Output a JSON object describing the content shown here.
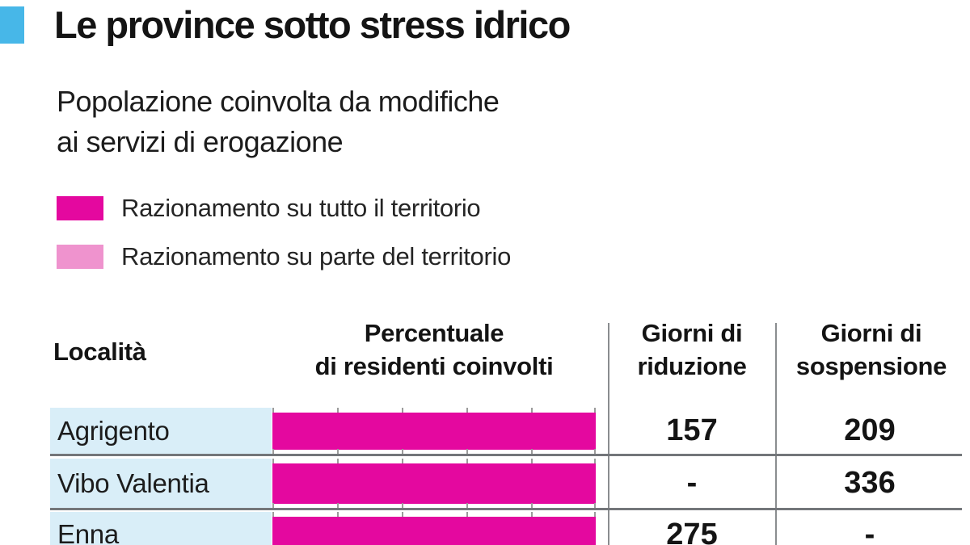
{
  "title": "Le province sotto stress idrico",
  "subtitle": {
    "line1": "Popolazione coinvolta da modifiche",
    "line2": "ai servizi di erogazione"
  },
  "legend": {
    "items": [
      {
        "key": "full-territory",
        "label": "Razionamento su tutto il territorio",
        "color": "#e4089f"
      },
      {
        "key": "part-territory",
        "label": "Razionamento su parte del territorio",
        "color": "#ef93ce"
      }
    ]
  },
  "table": {
    "headers": {
      "location": "Località",
      "percent_line1": "Percentuale",
      "percent_line2": "di residenti coinvolti",
      "reduction_line1": "Giorni di",
      "reduction_line2": "riduzione",
      "suspension_line1": "Giorni di",
      "suspension_line2": "sospensione"
    },
    "rows": [
      {
        "location": "Agrigento",
        "percent_involved": 100,
        "rationing": "full-territory",
        "reduction_days": "157",
        "suspension_days": "209"
      },
      {
        "location": "Vibo Valentia",
        "percent_involved": 100,
        "rationing": "full-territory",
        "reduction_days": "-",
        "suspension_days": "336"
      },
      {
        "location": "Enna",
        "percent_involved": 100,
        "rationing": "full-territory",
        "reduction_days": "275",
        "suspension_days": "-"
      }
    ]
  },
  "colors": {
    "cyan": "#47b7e8",
    "magenta": "#e4089f",
    "pink": "#ef93ce",
    "row_bg": "#d9eef8",
    "separator": "#73767a",
    "divider": "#8a8d8f",
    "tick": "#9b9b9b",
    "text": "#141414"
  },
  "chart_data": {
    "type": "bar",
    "orientation": "horizontal",
    "title": "Le province sotto stress idrico",
    "subtitle": "Popolazione coinvolta da modifiche ai servizi di erogazione",
    "categories": [
      "Agrigento",
      "Vibo Valentia",
      "Enna"
    ],
    "series": [
      {
        "name": "Razionamento su tutto il territorio",
        "values": [
          100,
          100,
          100
        ],
        "color": "#e4089f"
      }
    ],
    "value_axis_label": "Percentuale di residenti coinvolti",
    "xlim": [
      0,
      100
    ],
    "tick_interval": 20,
    "grid": false,
    "legend_position": "top-left",
    "legend_entries": [
      "Razionamento su tutto il territorio",
      "Razionamento su parte del territorio"
    ],
    "extra_columns": [
      {
        "header": "Giorni di riduzione",
        "values": [
          "157",
          "-",
          "275"
        ]
      },
      {
        "header": "Giorni di sospensione",
        "values": [
          "209",
          "336",
          "-"
        ]
      }
    ]
  }
}
